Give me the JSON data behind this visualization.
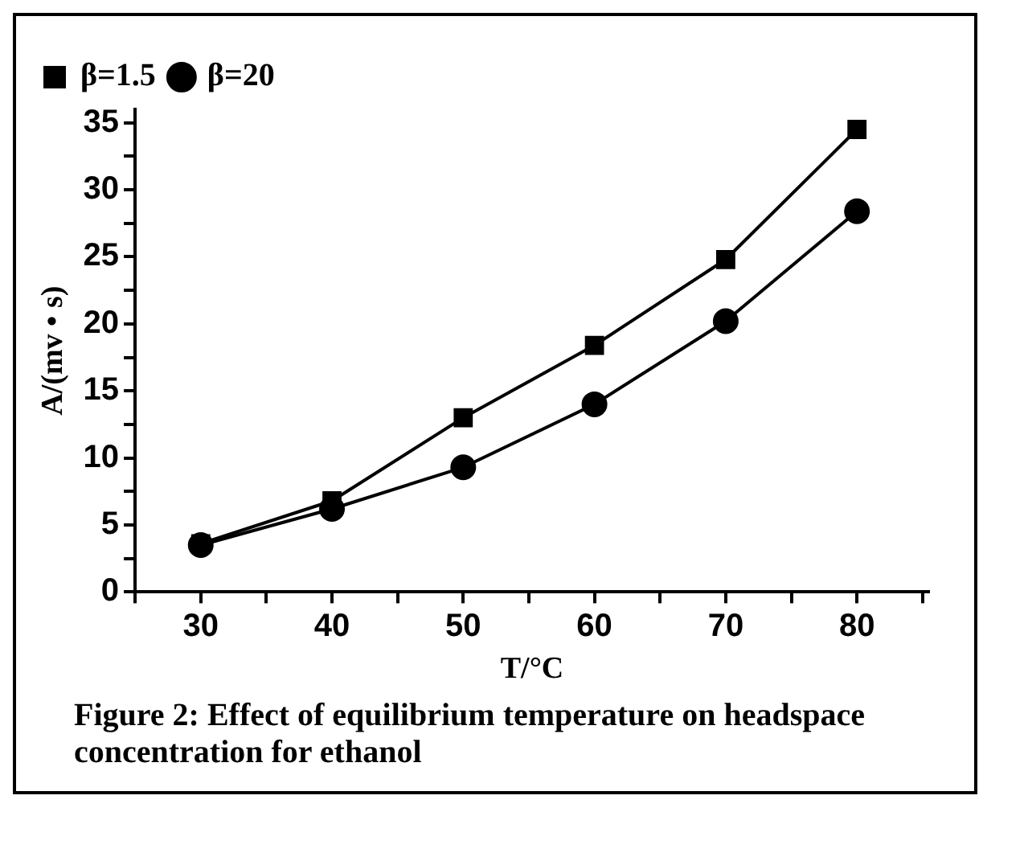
{
  "chart_data": {
    "type": "line",
    "xlabel": "T/°C",
    "ylabel": "A/(mv • s)",
    "annotations": [
      "Figure 2: Effect of equilibrium temperature on headspace concentration for ethanol"
    ],
    "x": [
      30,
      40,
      50,
      60,
      70,
      80
    ],
    "series": [
      {
        "name": "β=20",
        "color": "#000000",
        "marker": "circle",
        "values": [
          3.5,
          6.2,
          9.3,
          14.0,
          20.2,
          28.4
        ]
      },
      {
        "name": "β=1.5",
        "color": "#000000",
        "marker": "square",
        "values": [
          3.6,
          6.8,
          13.0,
          18.4,
          24.8,
          34.5
        ]
      }
    ],
    "xlim": [
      25,
      85.5
    ],
    "xticks": [
      30,
      40,
      50,
      60,
      70,
      80
    ],
    "ylim": [
      0,
      36
    ],
    "yticks": [
      0,
      5,
      10,
      15,
      20,
      25,
      30,
      35
    ],
    "grid": false,
    "legend": "top left",
    "line_style": "solid"
  }
}
